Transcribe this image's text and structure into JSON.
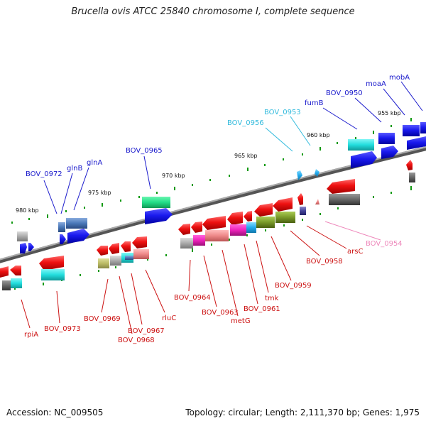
{
  "title": "Brucella ovis ATCC 25840 chromosome I, complete sequence",
  "footer": {
    "accession": "Accession: NC_009505",
    "topology": "Topology: circular; Length: 2,111,370 bp; Genes: 1,975"
  },
  "ticks": [
    {
      "id": "t980",
      "label": "980 kbp"
    },
    {
      "id": "t975",
      "label": "975 kbp"
    },
    {
      "id": "t970",
      "label": "970 kbp"
    },
    {
      "id": "t965",
      "label": "965 kbp"
    },
    {
      "id": "t960",
      "label": "960 kbp"
    },
    {
      "id": "t955",
      "label": "955 kbp"
    }
  ],
  "labels_top": [
    {
      "id": "bov0972",
      "text": "BOV_0972",
      "color": "#1a1acc"
    },
    {
      "id": "glnb",
      "text": "glnB",
      "color": "#1a1acc"
    },
    {
      "id": "glna",
      "text": "glnA",
      "color": "#1a1acc"
    },
    {
      "id": "bov0965",
      "text": "BOV_0965",
      "color": "#1a1acc"
    },
    {
      "id": "bov0956",
      "text": "BOV_0956",
      "color": "#33bbdd"
    },
    {
      "id": "bov0953",
      "text": "BOV_0953",
      "color": "#33bbdd"
    },
    {
      "id": "fumb",
      "text": "fumB",
      "color": "#1a1acc"
    },
    {
      "id": "bov0950",
      "text": "BOV_0950",
      "color": "#1a1acc"
    },
    {
      "id": "moaa",
      "text": "moaA",
      "color": "#1a1acc"
    },
    {
      "id": "moba",
      "text": "mobA",
      "color": "#1a1acc"
    }
  ],
  "labels_bottom": [
    {
      "id": "rpia",
      "text": "rpiA",
      "color": "#cc1111"
    },
    {
      "id": "bov0973",
      "text": "BOV_0973",
      "color": "#cc1111"
    },
    {
      "id": "bov0969",
      "text": "BOV_0969",
      "color": "#cc1111"
    },
    {
      "id": "bov0967",
      "text": "BOV_0967",
      "color": "#cc1111"
    },
    {
      "id": "bov0968",
      "text": "BOV_0968",
      "color": "#cc1111"
    },
    {
      "id": "rluc",
      "text": "rluC",
      "color": "#cc1111"
    },
    {
      "id": "bov0964",
      "text": "BOV_0964",
      "color": "#cc1111"
    },
    {
      "id": "bov0963",
      "text": "BOV_0963",
      "color": "#cc1111"
    },
    {
      "id": "metg",
      "text": "metG",
      "color": "#cc1111"
    },
    {
      "id": "bov0961",
      "text": "BOV_0961",
      "color": "#cc1111"
    },
    {
      "id": "tmk",
      "text": "tmk",
      "color": "#cc1111"
    },
    {
      "id": "bov0959",
      "text": "BOV_0959",
      "color": "#cc1111"
    },
    {
      "id": "bov0958",
      "text": "BOV_0958",
      "color": "#cc1111"
    },
    {
      "id": "arsc",
      "text": "arsC",
      "color": "#cc1111"
    },
    {
      "id": "bov0954",
      "text": "BOV_0954",
      "color": "#ee88bb"
    }
  ],
  "colors": {
    "forward": "#1a1aee",
    "reverse": "#ee1111",
    "backbone": "#777777",
    "tick_mark": "#119911"
  }
}
